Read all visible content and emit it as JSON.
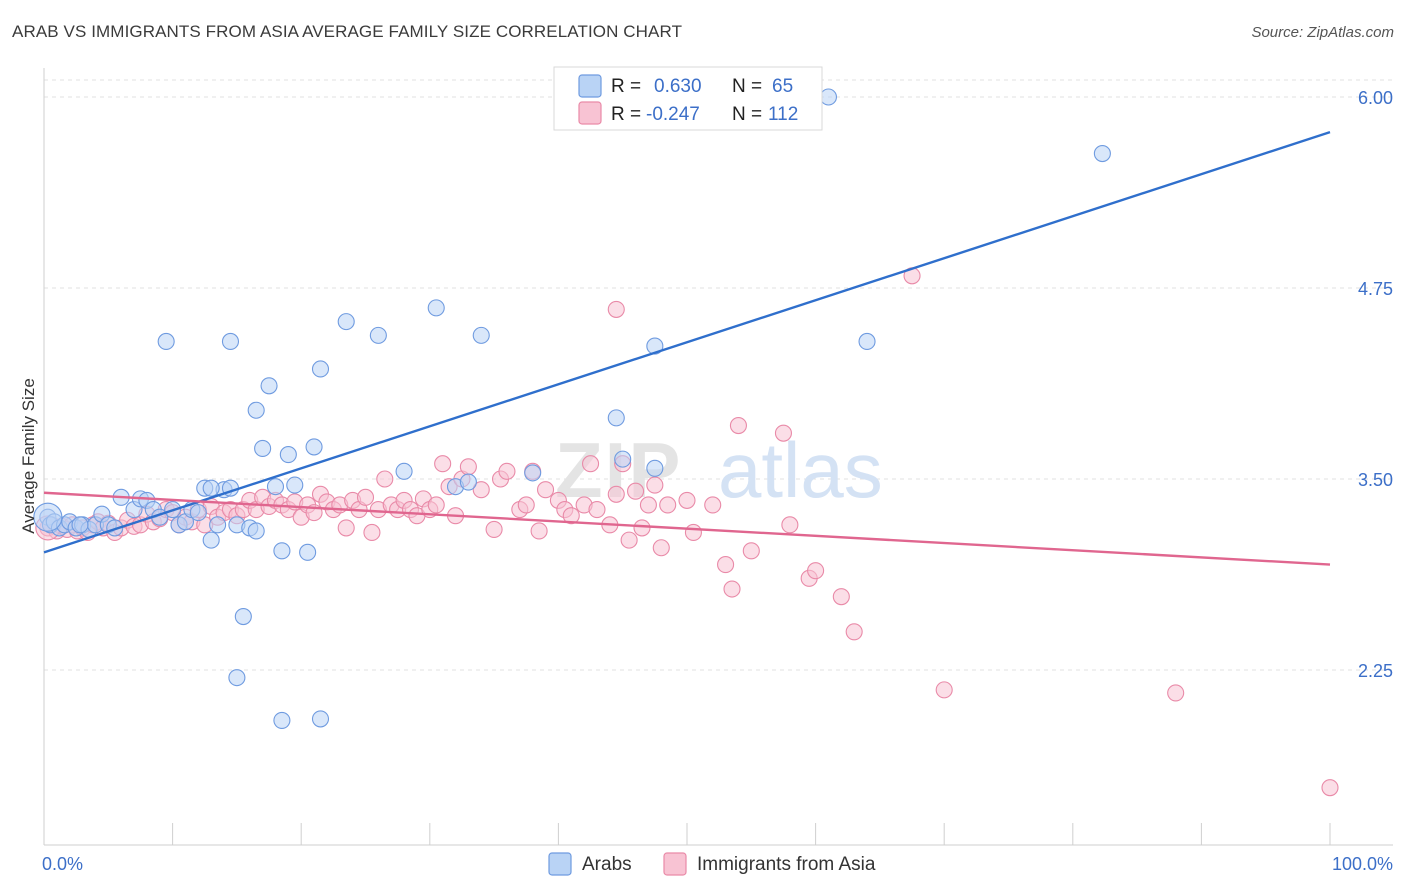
{
  "header": {
    "title": "ARAB VS IMMIGRANTS FROM ASIA AVERAGE FAMILY SIZE CORRELATION CHART",
    "source": "Source: ZipAtlas.com"
  },
  "watermark": {
    "zip": "ZIP",
    "atlas": "atlas"
  },
  "legend": {
    "rows": [
      {
        "r_label": "R =",
        "r_value": "0.630",
        "n_label": "N =",
        "n_value": "65",
        "fill": "#b9d3f5",
        "stroke": "#6f9be0"
      },
      {
        "r_label": "R =",
        "r_value": "-0.247",
        "n_label": "N =",
        "n_value": "112",
        "fill": "#f8c3d3",
        "stroke": "#e98aa8"
      }
    ]
  },
  "colors": {
    "arabs_fill": "#b9d3f5",
    "arabs_stroke": "#6f9be0",
    "arabs_line": "#2f6fcc",
    "asia_fill": "#f8c3d3",
    "asia_stroke": "#e98aa8",
    "asia_line": "#e0668f",
    "grid": "#e2e2e2",
    "axis_label": "#3c6fc8"
  },
  "chart_data": {
    "type": "scatter",
    "title": "ARAB VS IMMIGRANTS FROM ASIA AVERAGE FAMILY SIZE CORRELATION CHART",
    "xlabel": "",
    "ylabel": "Average Family Size",
    "xlim": [
      0,
      100
    ],
    "ylim": [
      1.2,
      6.1
    ],
    "x_tick_labels": [
      "0.0%",
      "100.0%"
    ],
    "x_minor_ticks": [
      0,
      10,
      20,
      30,
      40,
      50,
      60,
      70,
      80,
      90,
      100
    ],
    "y_ticks": [
      2.25,
      3.5,
      4.75,
      6.0
    ],
    "y_tick_labels": [
      "2.25",
      "3.50",
      "4.75",
      "6.00"
    ],
    "grid": true,
    "legend_position": "top-center",
    "series": [
      {
        "name": "Arabs",
        "r": 0.63,
        "n": 65,
        "trend": {
          "x": [
            0,
            100
          ],
          "y": [
            3.02,
            5.77
          ]
        },
        "points": [
          [
            0.3,
            3.25
          ],
          [
            0.5,
            3.2
          ],
          [
            0.8,
            3.22
          ],
          [
            1.2,
            3.18
          ],
          [
            1.6,
            3.2
          ],
          [
            2.0,
            3.22
          ],
          [
            2.5,
            3.18
          ],
          [
            3.0,
            3.2
          ],
          [
            3.5,
            3.17
          ],
          [
            4.0,
            3.2
          ],
          [
            4.5,
            3.27
          ],
          [
            5.0,
            3.2
          ],
          [
            5.5,
            3.18
          ],
          [
            6.0,
            3.38
          ],
          [
            7.0,
            3.3
          ],
          [
            7.5,
            3.37
          ],
          [
            8.0,
            3.36
          ],
          [
            8.5,
            3.3
          ],
          [
            9.0,
            3.25
          ],
          [
            9.5,
            4.4
          ],
          [
            10.0,
            3.3
          ],
          [
            10.5,
            3.2
          ],
          [
            11.0,
            3.22
          ],
          [
            11.5,
            3.3
          ],
          [
            12.0,
            3.28
          ],
          [
            12.5,
            3.44
          ],
          [
            13.0,
            3.1
          ],
          [
            13.5,
            3.2
          ],
          [
            14.0,
            3.43
          ],
          [
            15.0,
            3.2
          ],
          [
            16.0,
            3.18
          ],
          [
            13.0,
            3.44
          ],
          [
            14.5,
            3.44
          ],
          [
            16.5,
            3.95
          ],
          [
            17.0,
            3.7
          ],
          [
            14.5,
            4.4
          ],
          [
            15.0,
            2.2
          ],
          [
            15.5,
            2.6
          ],
          [
            16.5,
            3.16
          ],
          [
            17.5,
            4.11
          ],
          [
            18.0,
            3.45
          ],
          [
            18.5,
            3.03
          ],
          [
            19.0,
            3.66
          ],
          [
            19.5,
            3.46
          ],
          [
            18.5,
            1.92
          ],
          [
            20.5,
            3.02
          ],
          [
            21.0,
            3.71
          ],
          [
            21.5,
            1.93
          ],
          [
            21.5,
            4.22
          ],
          [
            23.5,
            4.53
          ],
          [
            26.0,
            4.44
          ],
          [
            28.0,
            3.55
          ],
          [
            30.5,
            4.62
          ],
          [
            32.0,
            3.45
          ],
          [
            33.0,
            3.48
          ],
          [
            34.0,
            4.44
          ],
          [
            38.0,
            3.54
          ],
          [
            44.5,
            3.9
          ],
          [
            45.0,
            3.63
          ],
          [
            47.5,
            3.57
          ],
          [
            47.5,
            4.37
          ],
          [
            64.0,
            4.4
          ],
          [
            61.0,
            6.0
          ],
          [
            82.3,
            5.63
          ],
          [
            2.8,
            3.2
          ]
        ]
      },
      {
        "name": "Immigrants from Asia",
        "r": -0.247,
        "n": 112,
        "trend": {
          "x": [
            0,
            100
          ],
          "y": [
            3.41,
            2.94
          ]
        },
        "points": [
          [
            0.3,
            3.18
          ],
          [
            0.6,
            3.2
          ],
          [
            1.0,
            3.16
          ],
          [
            1.4,
            3.19
          ],
          [
            1.8,
            3.17
          ],
          [
            2.2,
            3.2
          ],
          [
            2.6,
            3.16
          ],
          [
            3.0,
            3.18
          ],
          [
            3.4,
            3.15
          ],
          [
            3.8,
            3.2
          ],
          [
            4.2,
            3.22
          ],
          [
            4.6,
            3.18
          ],
          [
            5.0,
            3.21
          ],
          [
            5.5,
            3.15
          ],
          [
            6.0,
            3.18
          ],
          [
            6.5,
            3.23
          ],
          [
            7.0,
            3.19
          ],
          [
            7.5,
            3.2
          ],
          [
            8.0,
            3.27
          ],
          [
            8.5,
            3.22
          ],
          [
            9.0,
            3.24
          ],
          [
            9.5,
            3.3
          ],
          [
            10.0,
            3.28
          ],
          [
            10.5,
            3.2
          ],
          [
            11.0,
            3.25
          ],
          [
            11.5,
            3.22
          ],
          [
            12.0,
            3.3
          ],
          [
            12.5,
            3.2
          ],
          [
            13.0,
            3.32
          ],
          [
            13.5,
            3.25
          ],
          [
            14.0,
            3.28
          ],
          [
            14.5,
            3.3
          ],
          [
            15.0,
            3.26
          ],
          [
            15.5,
            3.3
          ],
          [
            16.0,
            3.36
          ],
          [
            16.5,
            3.3
          ],
          [
            17.0,
            3.38
          ],
          [
            17.5,
            3.32
          ],
          [
            18.0,
            3.36
          ],
          [
            18.5,
            3.33
          ],
          [
            19.0,
            3.3
          ],
          [
            19.5,
            3.35
          ],
          [
            20.0,
            3.25
          ],
          [
            20.5,
            3.33
          ],
          [
            21.0,
            3.28
          ],
          [
            21.5,
            3.4
          ],
          [
            22.0,
            3.35
          ],
          [
            22.5,
            3.3
          ],
          [
            23.0,
            3.33
          ],
          [
            23.5,
            3.18
          ],
          [
            24.0,
            3.36
          ],
          [
            24.5,
            3.3
          ],
          [
            25.0,
            3.38
          ],
          [
            25.5,
            3.15
          ],
          [
            26.0,
            3.3
          ],
          [
            26.5,
            3.5
          ],
          [
            27.0,
            3.33
          ],
          [
            27.5,
            3.3
          ],
          [
            28.0,
            3.36
          ],
          [
            28.5,
            3.3
          ],
          [
            29.0,
            3.26
          ],
          [
            29.5,
            3.37
          ],
          [
            30.0,
            3.3
          ],
          [
            30.5,
            3.33
          ],
          [
            31.0,
            3.6
          ],
          [
            31.5,
            3.45
          ],
          [
            32.0,
            3.26
          ],
          [
            32.5,
            3.5
          ],
          [
            33.0,
            3.58
          ],
          [
            34.0,
            3.43
          ],
          [
            35.0,
            3.17
          ],
          [
            35.5,
            3.5
          ],
          [
            36.0,
            3.55
          ],
          [
            37.0,
            3.3
          ],
          [
            37.5,
            3.33
          ],
          [
            38.0,
            3.55
          ],
          [
            38.5,
            3.16
          ],
          [
            39.0,
            3.43
          ],
          [
            40.0,
            3.36
          ],
          [
            40.5,
            3.3
          ],
          [
            41.0,
            3.26
          ],
          [
            42.0,
            3.33
          ],
          [
            42.5,
            3.6
          ],
          [
            43.0,
            3.3
          ],
          [
            44.0,
            3.2
          ],
          [
            44.5,
            3.4
          ],
          [
            45.0,
            3.6
          ],
          [
            45.5,
            3.1
          ],
          [
            46.0,
            3.42
          ],
          [
            46.5,
            3.18
          ],
          [
            47.0,
            3.33
          ],
          [
            47.5,
            3.46
          ],
          [
            48.0,
            3.05
          ],
          [
            48.5,
            3.33
          ],
          [
            50.0,
            3.36
          ],
          [
            50.5,
            3.15
          ],
          [
            52.0,
            3.33
          ],
          [
            53.0,
            2.94
          ],
          [
            53.5,
            2.78
          ],
          [
            54.0,
            3.85
          ],
          [
            55.0,
            3.03
          ],
          [
            57.5,
            3.8
          ],
          [
            58.0,
            3.2
          ],
          [
            59.5,
            2.85
          ],
          [
            60.0,
            2.9
          ],
          [
            62.0,
            2.73
          ],
          [
            63.0,
            2.5
          ],
          [
            67.5,
            4.83
          ],
          [
            70.0,
            2.12
          ],
          [
            88.0,
            2.1
          ],
          [
            100.0,
            1.48
          ],
          [
            44.5,
            4.61
          ]
        ]
      }
    ]
  }
}
